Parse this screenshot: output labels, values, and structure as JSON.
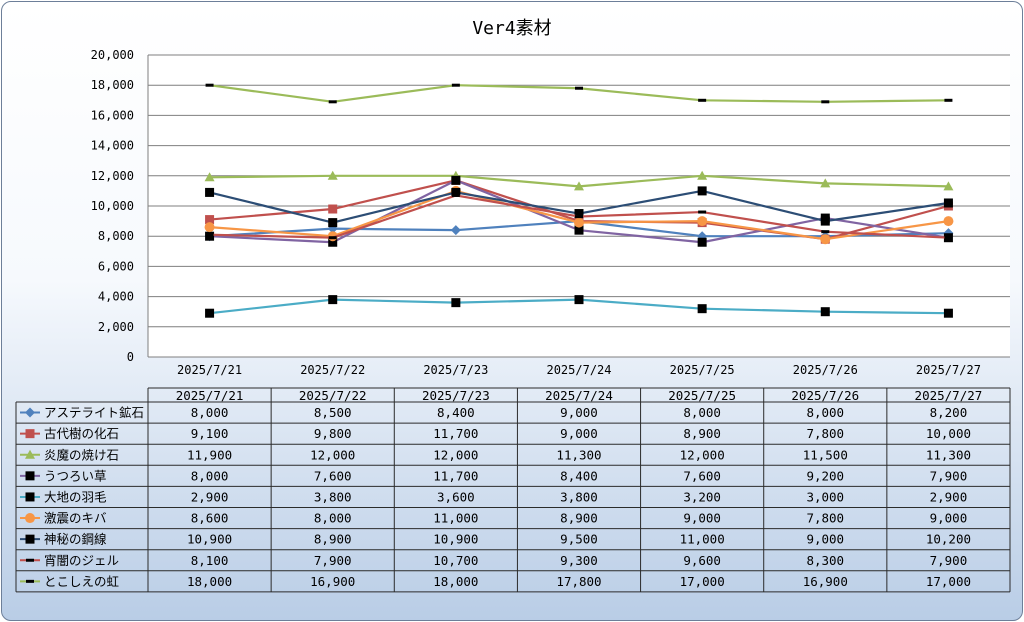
{
  "chart_data": {
    "type": "line",
    "title": "Ver4素材",
    "categories": [
      "2025/7/21",
      "2025/7/22",
      "2025/7/23",
      "2025/7/24",
      "2025/7/25",
      "2025/7/26",
      "2025/7/27"
    ],
    "ylim": [
      0,
      20000
    ],
    "yticks": [
      0,
      2000,
      4000,
      6000,
      8000,
      10000,
      12000,
      14000,
      16000,
      18000,
      20000
    ],
    "ytick_labels": [
      "0",
      "2,000",
      "4,000",
      "6,000",
      "8,000",
      "10,000",
      "12,000",
      "14,000",
      "16,000",
      "18,000",
      "20,000"
    ],
    "grid": true,
    "legend": "data-table",
    "series": [
      {
        "name": "アステライト鉱石",
        "color": "#4f81bd",
        "marker": "diamond",
        "values": [
          8000,
          8500,
          8400,
          9000,
          8000,
          8000,
          8200
        ],
        "labels": [
          "8,000",
          "8,500",
          "8,400",
          "9,000",
          "8,000",
          "8,000",
          "8,200"
        ]
      },
      {
        "name": "古代樹の化石",
        "color": "#c0504d",
        "marker": "square",
        "values": [
          9100,
          9800,
          11700,
          9000,
          8900,
          7800,
          10000
        ],
        "labels": [
          "9,100",
          "9,800",
          "11,700",
          "9,000",
          "8,900",
          "7,800",
          "10,000"
        ]
      },
      {
        "name": "炎魔の焼け石",
        "color": "#9bbb59",
        "marker": "triangle",
        "values": [
          11900,
          12000,
          12000,
          11300,
          12000,
          11500,
          11300
        ],
        "labels": [
          "11,900",
          "12,000",
          "12,000",
          "11,300",
          "12,000",
          "11,500",
          "11,300"
        ]
      },
      {
        "name": "うつろい草",
        "color": "#8064a2",
        "marker": "black-square",
        "values": [
          8000,
          7600,
          11700,
          8400,
          7600,
          9200,
          7900
        ],
        "labels": [
          "8,000",
          "7,600",
          "11,700",
          "8,400",
          "7,600",
          "9,200",
          "7,900"
        ]
      },
      {
        "name": "大地の羽毛",
        "color": "#4bacc6",
        "marker": "black-square",
        "values": [
          2900,
          3800,
          3600,
          3800,
          3200,
          3000,
          2900
        ],
        "labels": [
          "2,900",
          "3,800",
          "3,600",
          "3,800",
          "3,200",
          "3,000",
          "2,900"
        ]
      },
      {
        "name": "激震のキバ",
        "color": "#f79646",
        "marker": "circle",
        "values": [
          8600,
          8000,
          11000,
          8900,
          9000,
          7800,
          9000
        ],
        "labels": [
          "8,600",
          "8,000",
          "11,000",
          "8,900",
          "9,000",
          "7,800",
          "9,000"
        ]
      },
      {
        "name": "神秘の鋼線",
        "color": "#2c4d75",
        "marker": "black-square",
        "values": [
          10900,
          8900,
          10900,
          9500,
          11000,
          9000,
          10200
        ],
        "labels": [
          "10,900",
          "8,900",
          "10,900",
          "9,500",
          "11,000",
          "9,000",
          "10,200"
        ]
      },
      {
        "name": "宵闇のジェル",
        "color": "#c0504d",
        "marker": "dash",
        "values": [
          8100,
          7900,
          10700,
          9300,
          9600,
          8300,
          7900
        ],
        "labels": [
          "8,100",
          "7,900",
          "10,700",
          "9,300",
          "9,600",
          "8,300",
          "7,900"
        ]
      },
      {
        "name": "とこしえの虹",
        "color": "#9bbb59",
        "marker": "dash",
        "values": [
          18000,
          16900,
          18000,
          17800,
          17000,
          16900,
          17000
        ],
        "labels": [
          "18,000",
          "16,900",
          "18,000",
          "17,800",
          "17,000",
          "16,900",
          "17,000"
        ]
      }
    ]
  }
}
